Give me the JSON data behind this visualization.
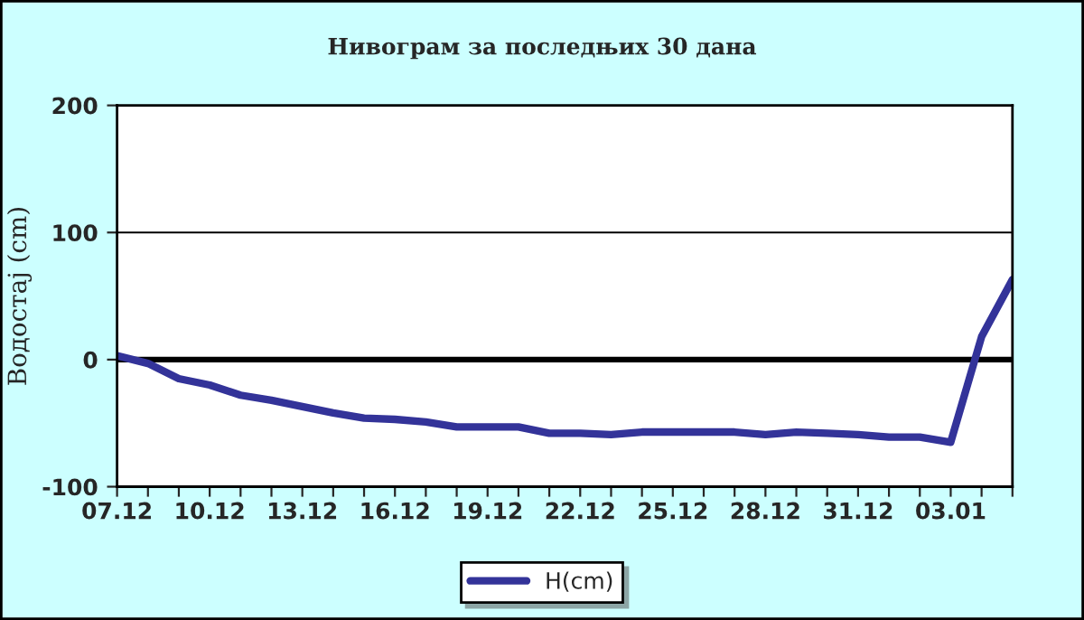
{
  "chart_data": {
    "type": "line",
    "title": "Нивограм за последњих 30 дана",
    "ylabel": "Водостај (cm)",
    "categories": [
      "07.12",
      null,
      null,
      "10.12",
      null,
      null,
      "13.12",
      null,
      null,
      "16.12",
      null,
      null,
      "19.12",
      null,
      null,
      "22.12",
      null,
      null,
      "25.12",
      null,
      null,
      "28.12",
      null,
      null,
      "31.12",
      null,
      null,
      "03.01",
      null,
      null
    ],
    "series": [
      {
        "name": "H(cm)",
        "color": "#333399",
        "values": [
          3,
          -3,
          -15,
          -20,
          -28,
          -32,
          -37,
          -42,
          -46,
          -47,
          -49,
          -53,
          -53,
          -53,
          -58,
          -58,
          -59,
          -57,
          -57,
          -57,
          -57,
          -59,
          -57,
          -58,
          -59,
          -61,
          -61,
          -65,
          18,
          63
        ]
      }
    ],
    "ylim": [
      -100,
      200
    ],
    "yticks": [
      -100,
      0,
      100,
      200
    ],
    "legend": "bottom",
    "ref_lines": [
      {
        "axis": "y",
        "value": 0,
        "color": "#000000"
      },
      {
        "axis": "y",
        "value": 100,
        "color": "#000000"
      }
    ]
  }
}
